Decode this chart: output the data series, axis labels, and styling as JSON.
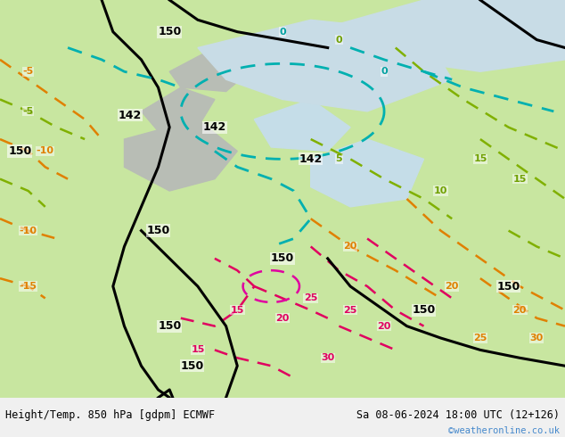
{
  "title_left": "Height/Temp. 850 hPa [gdpm] ECMWF",
  "title_right": "Sa 08-06-2024 18:00 UTC (12+126)",
  "watermark": "©weatheronline.co.uk",
  "bg_color_land": "#c8e6a0",
  "bg_color_sea": "#d0e8f0",
  "bg_color_mountain": "#b0b8b0",
  "fig_width": 6.34,
  "fig_height": 4.9,
  "dpi": 100,
  "bottom_bar_color": "#e8e8e8",
  "bottom_bar_height": 0.09
}
